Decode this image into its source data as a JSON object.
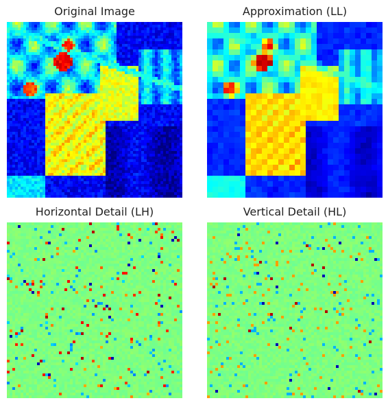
{
  "figure": {
    "panels": [
      {
        "title": "Original Image",
        "kind": "original"
      },
      {
        "title": "Approximation (LL)",
        "kind": "approx"
      },
      {
        "title": "Horizontal Detail (LH)",
        "kind": "horizontal"
      },
      {
        "title": "Vertical Detail (HL)",
        "kind": "vertical"
      }
    ],
    "colormap": "jet",
    "axes": "off"
  }
}
